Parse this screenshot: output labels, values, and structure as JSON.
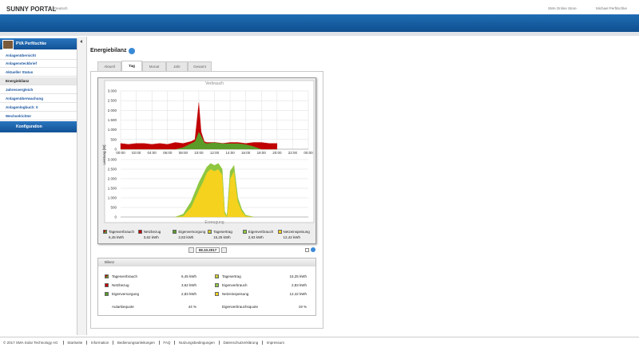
{
  "header": {
    "brand": "SUNNY PORTAL",
    "language": "Deutsch",
    "store": "SMA Online Store",
    "user": "Michael Perfitschke"
  },
  "sidebar": {
    "plant": "PVA Perfitschke",
    "items": [
      "Anlagenübersicht",
      "Anlagensteckbrief",
      "Aktueller Status",
      "Energiebilanz",
      "Jahresvergleich",
      "Anlagenüberwachung",
      "Anlagenlogbuch: 0",
      "Wechselrichter"
    ],
    "active": 3,
    "config": "Konfiguration"
  },
  "page": {
    "title": "Energiebilanz",
    "tabs": [
      "Aktuell",
      "Tag",
      "Monat",
      "Jahr",
      "Gesamt"
    ],
    "active_tab": 1
  },
  "chart_data": [
    {
      "type": "area",
      "title": "Verbrauch",
      "ylabel": "Leistung [W]",
      "stacked": true,
      "grid": true,
      "x": [
        0,
        1,
        2,
        3,
        4,
        5,
        6,
        7,
        8,
        9,
        9.5,
        10,
        10.3,
        10.7,
        11,
        12,
        13,
        14,
        15,
        16,
        17,
        18,
        19,
        20
      ],
      "xlim": [
        0,
        24
      ],
      "xticks": [
        {
          "value": 0,
          "label": "00:00"
        },
        {
          "value": 2,
          "label": "02:00"
        },
        {
          "value": 4,
          "label": "04:00"
        },
        {
          "value": 6,
          "label": "06:00"
        },
        {
          "value": 8,
          "label": "08:00"
        },
        {
          "value": 10,
          "label": "10:00"
        },
        {
          "value": 12,
          "label": "12:00"
        },
        {
          "value": 14,
          "label": "14:00"
        },
        {
          "value": 16,
          "label": "16:00"
        },
        {
          "value": 18,
          "label": "18:00"
        },
        {
          "value": 20,
          "label": "20:00"
        },
        {
          "value": 22,
          "label": "22:00"
        },
        {
          "value": 24,
          "label": "00:00"
        }
      ],
      "ylim": [
        0,
        3000
      ],
      "yticks": [
        0,
        500,
        {
          "value": 1000,
          "label": "1.000"
        },
        {
          "value": 1500,
          "label": "1.500"
        },
        {
          "value": 2000,
          "label": "2.000"
        },
        {
          "value": 2500,
          "label": "2.500"
        },
        {
          "value": 3000,
          "label": "3.000"
        }
      ],
      "series": [
        {
          "name": "Eigenversorgung",
          "color": "#5b9b28",
          "values": [
            0,
            0,
            0,
            0,
            0,
            0,
            0,
            0,
            100,
            300,
            400,
            900,
            700,
            350,
            300,
            350,
            300,
            300,
            300,
            250,
            150,
            0,
            0,
            0
          ]
        },
        {
          "name": "Netzbezug",
          "color": "#c00000",
          "values": [
            300,
            250,
            300,
            300,
            250,
            300,
            250,
            350,
            200,
            100,
            100,
            1500,
            200,
            50,
            50,
            0,
            0,
            50,
            50,
            50,
            200,
            350,
            300,
            300
          ]
        }
      ]
    },
    {
      "type": "area",
      "title": "Erzeugung",
      "stacked": true,
      "grid": true,
      "x": [
        7,
        8,
        9,
        10,
        10.5,
        11,
        11.5,
        12,
        12.5,
        13,
        13.3,
        13.6,
        14,
        14.5,
        15,
        15.5,
        16,
        17
      ],
      "xlim": [
        0,
        24
      ],
      "ylim": [
        0,
        3000
      ],
      "yticks": [
        0,
        500,
        {
          "value": 1000,
          "label": "1.000"
        },
        {
          "value": 1500,
          "label": "1.500"
        },
        {
          "value": 2000,
          "label": "2.000"
        },
        {
          "value": 2500,
          "label": "2.500"
        },
        {
          "value": 3000,
          "label": "3.000"
        }
      ],
      "series": [
        {
          "name": "Netzeinspeisung",
          "color": "#f4d21e",
          "values": [
            0,
            50,
            500,
            1400,
            1800,
            2300,
            2500,
            2400,
            2500,
            2200,
            200,
            0,
            2000,
            2400,
            800,
            300,
            50,
            0
          ]
        },
        {
          "name": "Eigenverbrauch",
          "color": "#8ec63f",
          "values": [
            0,
            100,
            300,
            400,
            400,
            300,
            300,
            300,
            300,
            300,
            100,
            50,
            400,
            300,
            200,
            100,
            50,
            0
          ]
        }
      ]
    }
  ],
  "legend": [
    {
      "label": "Tagesverbrauch",
      "value": "6,45 kWh",
      "colors": [
        "#c00000",
        "#5b9b28"
      ]
    },
    {
      "label": "Netzbezug",
      "value": "3,62 kWh",
      "colors": [
        "#c00000"
      ]
    },
    {
      "label": "Eigenversorgung",
      "value": "2,83 kWh",
      "colors": [
        "#5b9b28"
      ]
    },
    {
      "label": "Tagesertrag",
      "value": "15,25 kWh",
      "colors": [
        "#f4d21e",
        "#8ec63f"
      ]
    },
    {
      "label": "Eigenverbrauch",
      "value": "2,83 kWh",
      "colors": [
        "#8ec63f"
      ]
    },
    {
      "label": "Netzeinspeisung",
      "value": "12,42 kWh",
      "colors": [
        "#f4d21e"
      ]
    }
  ],
  "date": "08.10.2017",
  "balance": {
    "title": "Bilanz",
    "left": [
      {
        "label": "Tagesverbrauch",
        "value": "6,45 kWh",
        "colors": [
          "#c00000",
          "#5b9b28"
        ]
      },
      {
        "label": "Netzbezug",
        "value": "3,62 kWh",
        "colors": [
          "#c00000"
        ]
      },
      {
        "label": "Eigenversorgung",
        "value": "2,83 kWh",
        "colors": [
          "#5b9b28"
        ]
      },
      {
        "label": "Autarkiequote",
        "value": "44 %"
      }
    ],
    "right": [
      {
        "label": "Tagesertrag",
        "value": "15,25 kWh",
        "colors": [
          "#f4d21e",
          "#8ec63f"
        ]
      },
      {
        "label": "Eigenverbrauch",
        "value": "2,83 kWh",
        "colors": [
          "#8ec63f"
        ]
      },
      {
        "label": "Netzeinspeisung",
        "value": "12,42 kWh",
        "colors": [
          "#f4d21e"
        ]
      },
      {
        "label": "Eigenverbrauchsquote",
        "value": "19 %"
      }
    ]
  },
  "footer": {
    "copyright": "© 2017 SMA Solar Technology AG",
    "links": [
      "Startseite",
      "Information",
      "Bedienungsanleitungen",
      "FAQ",
      "Nutzungsbedingungen",
      "Datenschutzerklärung",
      "Impressum"
    ]
  }
}
